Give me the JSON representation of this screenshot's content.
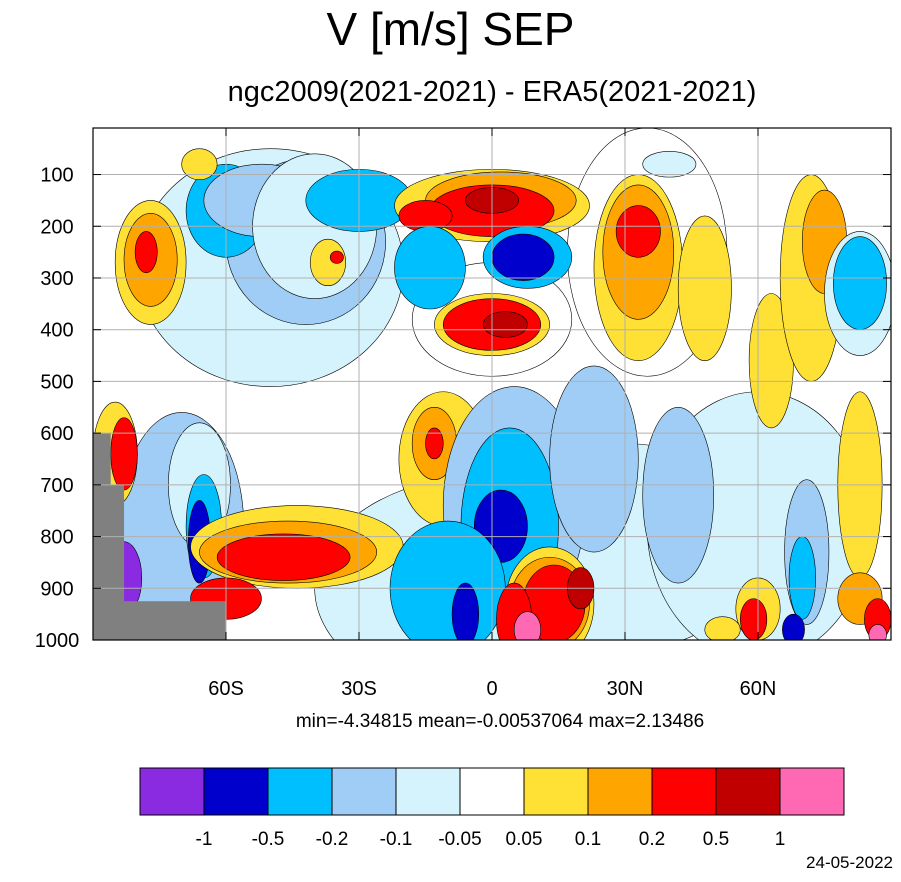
{
  "title": "V [m/s] SEP",
  "subtitle": "ngc2009(2021-2021) - ERA5(2021-2021)",
  "stats_text": "min=-4.34815   mean=-0.00537064   max=2.13486",
  "date": "24-05-2022",
  "chart_data": {
    "type": "heatmap",
    "title": "V [m/s] SEP",
    "subtitle": "ngc2009(2021-2021) - ERA5(2021-2021)",
    "x_ticks": [
      "60S",
      "30S",
      "0",
      "30N",
      "60N"
    ],
    "x_tick_values": [
      -60,
      -30,
      0,
      30,
      60
    ],
    "xlim": [
      -90,
      90
    ],
    "y_ticks": [
      "100",
      "200",
      "300",
      "400",
      "500",
      "600",
      "700",
      "800",
      "900",
      "1000"
    ],
    "y_tick_values": [
      100,
      200,
      300,
      400,
      500,
      600,
      700,
      800,
      900,
      1000
    ],
    "ylim": [
      1000,
      10
    ],
    "grid": true,
    "colorbar": {
      "levels": [
        "-1",
        "-0.5",
        "-0.2",
        "-0.1",
        "-0.05",
        "0.05",
        "0.1",
        "0.2",
        "0.5",
        "1"
      ],
      "colors": [
        "#8a2be2",
        "#0000cd",
        "#00bfff",
        "#a0cdf5",
        "#d4f3fc",
        "#ffffff",
        "#ffe135",
        "#ffa500",
        "#ff0000",
        "#c00000",
        "#ff69b4"
      ]
    },
    "stats": {
      "min": -4.34815,
      "mean": -0.00537064,
      "max": 2.13486
    },
    "blobs": [
      {
        "lat": -60,
        "p": 170,
        "rx": 9,
        "ry": 90,
        "level": 2
      },
      {
        "lat": -52,
        "p": 150,
        "rx": 13,
        "ry": 70,
        "level": 3
      },
      {
        "lat": -40,
        "p": 140,
        "rx": 9,
        "ry": 50,
        "level": 3
      },
      {
        "lat": -40,
        "p": 200,
        "rx": 14,
        "ry": 140,
        "level": 4
      },
      {
        "lat": -30,
        "p": 150,
        "rx": 12,
        "ry": 60,
        "level": 2
      },
      {
        "lat": -77,
        "p": 270,
        "rx": 8,
        "ry": 120,
        "level": 6
      },
      {
        "lat": -77,
        "p": 265,
        "rx": 6,
        "ry": 90,
        "level": 7
      },
      {
        "lat": -78,
        "p": 250,
        "rx": 2.5,
        "ry": 40,
        "level": 8
      },
      {
        "lat": -37,
        "p": 270,
        "rx": 4,
        "ry": 45,
        "level": 6
      },
      {
        "lat": -35,
        "p": 260,
        "rx": 1.5,
        "ry": 12,
        "level": 8
      },
      {
        "lat": -66,
        "p": 80,
        "rx": 4,
        "ry": 30,
        "level": 6
      },
      {
        "lat": 0,
        "p": 160,
        "rx": 22,
        "ry": 70,
        "level": 6
      },
      {
        "lat": 2,
        "p": 150,
        "rx": 17,
        "ry": 55,
        "level": 7
      },
      {
        "lat": 0,
        "p": 170,
        "rx": 14,
        "ry": 50,
        "level": 8
      },
      {
        "lat": 0,
        "p": 150,
        "rx": 6,
        "ry": 25,
        "level": 9
      },
      {
        "lat": -15,
        "p": 180,
        "rx": 6,
        "ry": 30,
        "level": 8
      },
      {
        "lat": 8,
        "p": 260,
        "rx": 10,
        "ry": 60,
        "level": 2
      },
      {
        "lat": 7,
        "p": 260,
        "rx": 7,
        "ry": 45,
        "level": 1
      },
      {
        "lat": -14,
        "p": 280,
        "rx": 8,
        "ry": 80,
        "level": 2
      },
      {
        "lat": 0,
        "p": 390,
        "rx": 13,
        "ry": 60,
        "level": 6
      },
      {
        "lat": 0,
        "p": 390,
        "rx": 11,
        "ry": 50,
        "level": 8
      },
      {
        "lat": 3,
        "p": 390,
        "rx": 5,
        "ry": 25,
        "level": 9
      },
      {
        "lat": 33,
        "p": 280,
        "rx": 10,
        "ry": 180,
        "level": 6
      },
      {
        "lat": 33,
        "p": 250,
        "rx": 8,
        "ry": 130,
        "level": 7
      },
      {
        "lat": 33,
        "p": 210,
        "rx": 5,
        "ry": 50,
        "level": 8
      },
      {
        "lat": 48,
        "p": 320,
        "rx": 6,
        "ry": 140,
        "level": 6
      },
      {
        "lat": 63,
        "p": 460,
        "rx": 5,
        "ry": 130,
        "level": 6
      },
      {
        "lat": 72,
        "p": 300,
        "rx": 7,
        "ry": 200,
        "level": 6
      },
      {
        "lat": 75,
        "p": 230,
        "rx": 5,
        "ry": 100,
        "level": 7
      },
      {
        "lat": 83,
        "p": 330,
        "rx": 8,
        "ry": 120,
        "level": 4
      },
      {
        "lat": 83,
        "p": 310,
        "rx": 6,
        "ry": 90,
        "level": 2
      },
      {
        "lat": 40,
        "p": 80,
        "rx": 6,
        "ry": 25,
        "level": 4
      },
      {
        "lat": -66,
        "p": 700,
        "rx": 7,
        "ry": 120,
        "level": 4
      },
      {
        "lat": -65,
        "p": 780,
        "rx": 4,
        "ry": 100,
        "level": 2
      },
      {
        "lat": -66,
        "p": 810,
        "rx": 2.5,
        "ry": 80,
        "level": 1
      },
      {
        "lat": -85,
        "p": 640,
        "rx": 5,
        "ry": 100,
        "level": 6
      },
      {
        "lat": -83,
        "p": 640,
        "rx": 3,
        "ry": 70,
        "level": 8
      },
      {
        "lat": -83,
        "p": 880,
        "rx": 4,
        "ry": 70,
        "level": 0
      },
      {
        "lat": -44,
        "p": 820,
        "rx": 24,
        "ry": 80,
        "level": 6
      },
      {
        "lat": -46,
        "p": 830,
        "rx": 20,
        "ry": 60,
        "level": 7
      },
      {
        "lat": -47,
        "p": 840,
        "rx": 15,
        "ry": 45,
        "level": 8
      },
      {
        "lat": -60,
        "p": 920,
        "rx": 8,
        "ry": 40,
        "level": 8
      },
      {
        "lat": -11,
        "p": 650,
        "rx": 10,
        "ry": 130,
        "level": 6
      },
      {
        "lat": -13,
        "p": 620,
        "rx": 5,
        "ry": 70,
        "level": 7
      },
      {
        "lat": -13,
        "p": 620,
        "rx": 2,
        "ry": 30,
        "level": 8
      },
      {
        "lat": 5,
        "p": 740,
        "rx": 16,
        "ry": 230,
        "level": 3
      },
      {
        "lat": 4,
        "p": 780,
        "rx": 11,
        "ry": 190,
        "level": 2
      },
      {
        "lat": 2,
        "p": 780,
        "rx": 6,
        "ry": 70,
        "level": 1
      },
      {
        "lat": -10,
        "p": 900,
        "rx": 13,
        "ry": 130,
        "level": 2
      },
      {
        "lat": -6,
        "p": 950,
        "rx": 3,
        "ry": 60,
        "level": 1
      },
      {
        "lat": 13,
        "p": 930,
        "rx": 10,
        "ry": 110,
        "level": 6
      },
      {
        "lat": 13,
        "p": 930,
        "rx": 9,
        "ry": 90,
        "level": 7
      },
      {
        "lat": 14,
        "p": 930,
        "rx": 7,
        "ry": 75,
        "level": 8
      },
      {
        "lat": 5,
        "p": 960,
        "rx": 4,
        "ry": 70,
        "level": 8
      },
      {
        "lat": 8,
        "p": 980,
        "rx": 3,
        "ry": 35,
        "level": 10
      },
      {
        "lat": 20,
        "p": 900,
        "rx": 3,
        "ry": 40,
        "level": 9
      },
      {
        "lat": 23,
        "p": 650,
        "rx": 10,
        "ry": 180,
        "level": 3
      },
      {
        "lat": 42,
        "p": 720,
        "rx": 8,
        "ry": 170,
        "level": 3
      },
      {
        "lat": 60,
        "p": 940,
        "rx": 5,
        "ry": 60,
        "level": 6
      },
      {
        "lat": 59,
        "p": 960,
        "rx": 3,
        "ry": 40,
        "level": 8
      },
      {
        "lat": 71,
        "p": 830,
        "rx": 5,
        "ry": 140,
        "level": 3
      },
      {
        "lat": 70,
        "p": 880,
        "rx": 3,
        "ry": 80,
        "level": 2
      },
      {
        "lat": 68,
        "p": 980,
        "rx": 2.5,
        "ry": 30,
        "level": 1
      },
      {
        "lat": 83,
        "p": 700,
        "rx": 5,
        "ry": 180,
        "level": 6
      },
      {
        "lat": 83,
        "p": 920,
        "rx": 5,
        "ry": 50,
        "level": 7
      },
      {
        "lat": 87,
        "p": 960,
        "rx": 3,
        "ry": 40,
        "level": 8
      },
      {
        "lat": 87,
        "p": 990,
        "rx": 2,
        "ry": 20,
        "level": 10
      },
      {
        "lat": 52,
        "p": 980,
        "rx": 4,
        "ry": 25,
        "level": 6
      }
    ]
  }
}
